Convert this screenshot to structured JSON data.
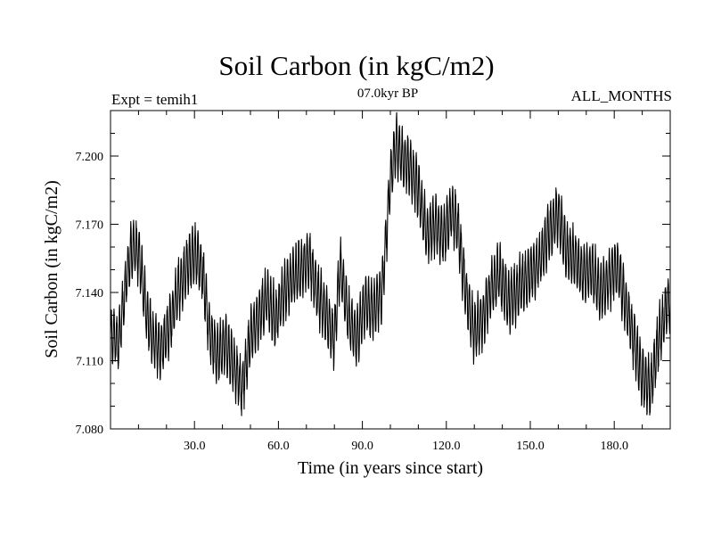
{
  "title": "Soil Carbon (in kgC/m2)",
  "subtitle": "07.0kyr BP",
  "expt_label": "Expt = temih1",
  "months_label": "ALL_MONTHS",
  "chart_data": {
    "type": "line",
    "title": "Soil Carbon (in kgC/m2)",
    "xlabel": "Time (in years since start)",
    "ylabel": "Soil Carbon (in kgC/m2)",
    "xlim": [
      0,
      200
    ],
    "ylim": [
      7.08,
      7.22
    ],
    "x_ticks": [
      30,
      60,
      90,
      120,
      150,
      180
    ],
    "x_tick_labels": [
      "30.0",
      "60.0",
      "90.0",
      "120.0",
      "150.0",
      "180.0"
    ],
    "y_ticks": [
      7.08,
      7.11,
      7.14,
      7.17,
      7.2
    ],
    "y_tick_labels": [
      "7.080",
      "7.110",
      "7.140",
      "7.170",
      "7.200"
    ],
    "grid": false,
    "seasonal_amplitude": 0.012,
    "series": [
      {
        "name": "Soil Carbon",
        "color": "#000000",
        "x": [
          0,
          3,
          6,
          8,
          10,
          13,
          15,
          18,
          21,
          24,
          27,
          30,
          33,
          35,
          38,
          41,
          44,
          47,
          50,
          53,
          56,
          59,
          62,
          65,
          68,
          71,
          74,
          77,
          80,
          82,
          85,
          88,
          91,
          94,
          97,
          100,
          102,
          104,
          107,
          110,
          113,
          116,
          119,
          122,
          124,
          127,
          130,
          133,
          136,
          139,
          142,
          145,
          148,
          151,
          154,
          157,
          160,
          163,
          166,
          169,
          172,
          175,
          178,
          181,
          184,
          187,
          190,
          193,
          196,
          199
        ],
        "values": [
          7.122,
          7.118,
          7.15,
          7.16,
          7.158,
          7.13,
          7.12,
          7.115,
          7.125,
          7.14,
          7.15,
          7.158,
          7.148,
          7.125,
          7.112,
          7.118,
          7.108,
          7.098,
          7.12,
          7.13,
          7.138,
          7.128,
          7.14,
          7.146,
          7.15,
          7.155,
          7.14,
          7.13,
          7.12,
          7.152,
          7.128,
          7.12,
          7.135,
          7.132,
          7.14,
          7.19,
          7.205,
          7.2,
          7.195,
          7.185,
          7.165,
          7.17,
          7.165,
          7.175,
          7.17,
          7.14,
          7.122,
          7.128,
          7.142,
          7.148,
          7.136,
          7.14,
          7.145,
          7.15,
          7.155,
          7.168,
          7.175,
          7.158,
          7.155,
          7.148,
          7.15,
          7.14,
          7.145,
          7.152,
          7.135,
          7.12,
          7.102,
          7.098,
          7.12,
          7.135
        ]
      }
    ]
  }
}
